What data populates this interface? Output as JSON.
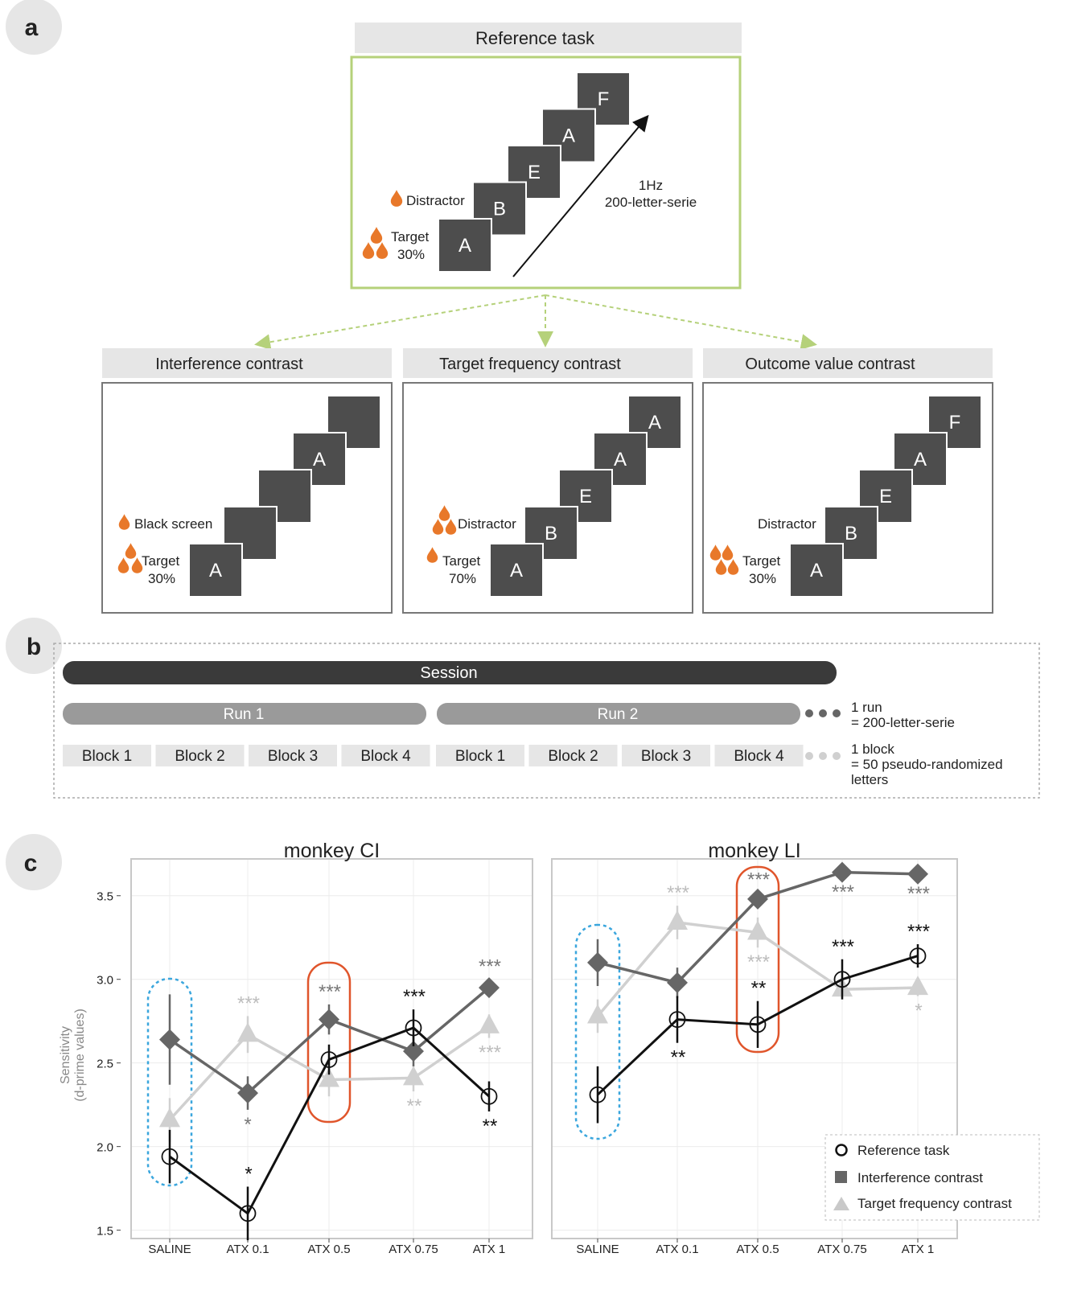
{
  "panel_labels": {
    "a": "a",
    "b": "b",
    "c": "c"
  },
  "colors": {
    "reference_border": "#b5d17a",
    "drop": "#e8782a",
    "letter_box": "#4d4d4d",
    "header_bg": "#e6e6e6",
    "session_bar": "#3a3a3a",
    "run_bar": "#9a9a9a",
    "block_bg": "#e6e6e6",
    "reference_series": "#111111",
    "interference_series": "#666666",
    "target_freq_series": "#c9c9c9",
    "highlight_saline": "#3aa6dd",
    "highlight_atx05": "#e0552b"
  },
  "panel_a": {
    "reference": {
      "title": "Reference task",
      "letters": [
        "A",
        "B",
        "E",
        "A",
        "F"
      ],
      "distractor_label": "Distractor",
      "target_label": "Target",
      "target_pct": "30%",
      "rate_label": "1Hz",
      "serie_label": "200-letter-serie"
    },
    "contrasts": [
      {
        "title": "Interference contrast",
        "letters": [
          "A",
          "",
          "",
          "A",
          ""
        ],
        "upper_label": "Black screen",
        "upper_drops": 1,
        "target_label": "Target",
        "target_pct": "30%",
        "target_drops": 3
      },
      {
        "title": "Target frequency contrast",
        "letters": [
          "A",
          "B",
          "E",
          "A",
          "A"
        ],
        "upper_label": "Distractor",
        "upper_drops": 3,
        "target_label": "Target",
        "target_pct": "70%",
        "target_drops": 1
      },
      {
        "title": "Outcome value contrast",
        "letters": [
          "A",
          "B",
          "E",
          "A",
          "F"
        ],
        "upper_label": "Distractor",
        "upper_drops": 0,
        "target_label": "Target",
        "target_pct": "30%",
        "target_drops": 4
      }
    ]
  },
  "panel_b": {
    "session": "Session",
    "runs": [
      "Run 1",
      "Run 2"
    ],
    "blocks": [
      "Block 1",
      "Block 2",
      "Block 3",
      "Block 4",
      "Block 1",
      "Block 2",
      "Block 3",
      "Block 4"
    ],
    "run_note_line1": "1 run",
    "run_note_line2": "= 200-letter-serie",
    "block_note_line1": "1 block",
    "block_note_line2": "= 50 pseudo-randomized",
    "block_note_line3": "letters"
  },
  "chart_data": [
    {
      "type": "line",
      "title": "monkey CI",
      "ylabel_line1": "Sensitivity",
      "ylabel_line2": "(d-prime values)",
      "categories": [
        "SALINE",
        "ATX 0.1",
        "ATX 0.5",
        "ATX 0.75",
        "ATX 1"
      ],
      "yticks": [
        "1.5",
        "2.0",
        "2.5",
        "3.0",
        "3.5"
      ],
      "ylim": [
        1.45,
        3.72
      ],
      "series": [
        {
          "name": "Interference contrast",
          "marker": "diamond",
          "values": [
            2.64,
            2.32,
            2.76,
            2.57,
            2.95
          ],
          "err": [
            0.27,
            0.1,
            0.09,
            0.09,
            0.05
          ],
          "stars": [
            "",
            "",
            "***",
            "",
            "***"
          ],
          "star_pos": [
            "",
            "",
            "above",
            "",
            "above"
          ]
        },
        {
          "name": "Target frequency contrast",
          "marker": "triangle",
          "values": [
            2.16,
            2.67,
            2.4,
            2.41,
            2.72
          ],
          "err": [
            0.13,
            0.11,
            0.1,
            0.08,
            0.07
          ],
          "stars": [
            "",
            "***",
            "",
            "**",
            "***"
          ],
          "star_pos": [
            "",
            "above",
            "",
            "below",
            "below"
          ]
        },
        {
          "name": "Reference task",
          "marker": "circle",
          "values": [
            1.94,
            1.6,
            2.52,
            2.71,
            2.3
          ],
          "err": [
            0.16,
            0.16,
            0.09,
            0.11,
            0.09
          ],
          "stars": [
            "",
            "*",
            "",
            "***",
            "**"
          ],
          "star_pos": [
            "",
            "above",
            "",
            "above",
            "below"
          ]
        }
      ],
      "extra_stars": [
        {
          "text": "*",
          "series": "Interference contrast",
          "index": 1,
          "pos": "below"
        }
      ],
      "highlight": [
        {
          "index": 0,
          "color": "blue"
        },
        {
          "index": 2,
          "color": "red"
        }
      ]
    },
    {
      "type": "line",
      "title": "monkey LI",
      "categories": [
        "SALINE",
        "ATX 0.1",
        "ATX 0.5",
        "ATX 0.75",
        "ATX 1"
      ],
      "ylim": [
        1.45,
        3.72
      ],
      "series": [
        {
          "name": "Interference contrast",
          "marker": "diamond",
          "values": [
            3.1,
            2.98,
            3.48,
            3.64,
            3.63
          ],
          "err": [
            0.14,
            0.09,
            0.04,
            0.03,
            0.03
          ],
          "stars": [
            "",
            "",
            "***",
            "***",
            "***"
          ],
          "star_pos": [
            "",
            "",
            "above",
            "below",
            "below"
          ]
        },
        {
          "name": "Target frequency contrast",
          "marker": "triangle",
          "values": [
            2.78,
            3.34,
            3.28,
            2.94,
            2.95
          ],
          "err": [
            0.1,
            0.1,
            0.09,
            0.05,
            0.05
          ],
          "stars": [
            "",
            "***",
            "***",
            "",
            "*"
          ],
          "star_pos": [
            "",
            "above",
            "below",
            "",
            "below"
          ]
        },
        {
          "name": "Reference task",
          "marker": "circle",
          "values": [
            2.31,
            2.76,
            2.73,
            3.0,
            3.14
          ],
          "err": [
            0.17,
            0.14,
            0.14,
            0.12,
            0.07
          ],
          "stars": [
            "",
            "**",
            "**",
            "***",
            "***"
          ],
          "star_pos": [
            "",
            "below",
            "above",
            "above",
            "above"
          ]
        }
      ],
      "highlight": [
        {
          "index": 0,
          "color": "blue"
        },
        {
          "index": 2,
          "color": "red"
        }
      ]
    }
  ],
  "legend": {
    "items": [
      "Reference task",
      "Interference contrast",
      "Target frequency contrast"
    ]
  }
}
